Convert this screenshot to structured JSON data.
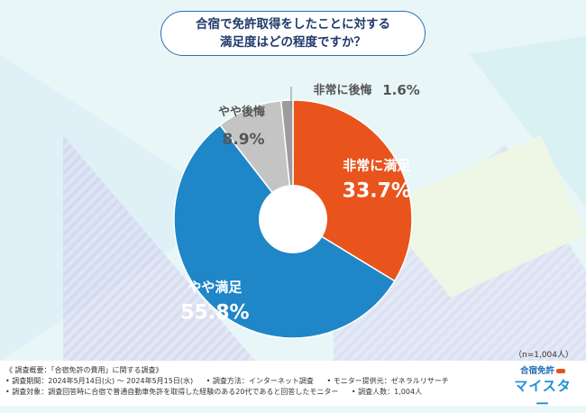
{
  "title": [
    "合宿で免許取得をしたことに対する",
    "満足度はどの程度ですか？"
  ],
  "sample_size": "（n=1,004人）",
  "colors": {
    "very_satisfied": "#e8541c",
    "somewhat_satisfied": "#1f86c8",
    "somewhat_regret": "#c4c4c4",
    "very_regret": "#9c9c9c",
    "title_border": "#2a6fae"
  },
  "chart_data": {
    "type": "pie",
    "style": "donut",
    "direction": "clockwise from top",
    "slices": [
      {
        "label": "非常に満足",
        "value": 33.7,
        "display": "33.7%",
        "color": "#e8541c",
        "label_color": "#ffffff"
      },
      {
        "label": "やや満足",
        "value": 55.8,
        "display": "55.8%",
        "color": "#1f86c8",
        "label_color": "#ffffff"
      },
      {
        "label": "やや後悔",
        "value": 8.9,
        "display": "8.9%",
        "color": "#c4c4c4",
        "label_color": "#555555"
      },
      {
        "label": "非常に後悔",
        "value": 1.6,
        "display": "1.6%",
        "color": "#9c9c9c",
        "label_color": "#555555"
      }
    ]
  },
  "footer": {
    "line1": "《 調査概要：「合宿免許の費用」に関する調査》",
    "line2": [
      "• 調査期間：2024年5月14日(火) ～ 2024年5月15日(水)",
      "• 調査方法：インターネット調査",
      "• モニター提供元：ゼネラルリサーチ"
    ],
    "line3": [
      "• 調査対象：調査回答時に合宿で普通自動車免許を取得した経験のある20代であると回答したモニター",
      "• 調査人数：1,004人"
    ]
  },
  "logo": {
    "line1": "合宿免許",
    "line2": "マイスター"
  }
}
